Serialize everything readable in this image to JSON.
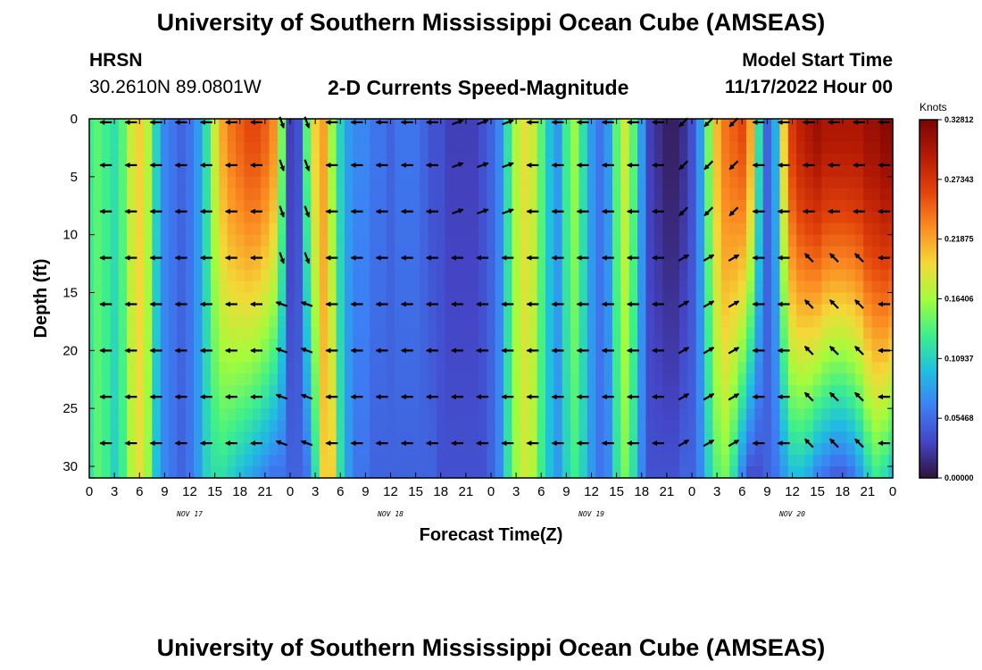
{
  "header": {
    "title": "University of Southern Mississippi Ocean Cube (AMSEAS)",
    "station": "HRSN",
    "coords": "30.2610N  89.0801W",
    "subtitle": "2-D Currents Speed-Magnitude",
    "model_label": "Model Start Time",
    "model_time": "11/17/2022 Hour 00",
    "footer_title": "University of Southern Mississippi Ocean Cube (AMSEAS)"
  },
  "chart_data": {
    "type": "heatmap",
    "title": "2-D Currents Speed-Magnitude",
    "xlabel": "Forecast Time(Z)",
    "ylabel": "Depth (ft)",
    "xlim": [
      0,
      96
    ],
    "ylim": [
      31,
      0
    ],
    "x_ticks": [
      0,
      3,
      6,
      9,
      12,
      15,
      18,
      21,
      24,
      27,
      30,
      33,
      36,
      39,
      42,
      45,
      48,
      51,
      54,
      57,
      60,
      63,
      66,
      69,
      72,
      75,
      78,
      81,
      84,
      87,
      90,
      93,
      96
    ],
    "x_tick_labels": [
      "0",
      "3",
      "6",
      "9",
      "12",
      "15",
      "18",
      "21",
      "0",
      "3",
      "6",
      "9",
      "12",
      "15",
      "18",
      "21",
      "0",
      "3",
      "6",
      "9",
      "12",
      "15",
      "18",
      "21",
      "0",
      "3",
      "6",
      "9",
      "12",
      "15",
      "18",
      "21",
      "0"
    ],
    "day_labels": [
      {
        "hour": 12,
        "label": "NOV 17"
      },
      {
        "hour": 36,
        "label": "NOV 18"
      },
      {
        "hour": 60,
        "label": "NOV 19"
      },
      {
        "hour": 84,
        "label": "NOV 20"
      }
    ],
    "y_ticks": [
      0,
      5,
      10,
      15,
      20,
      25,
      30
    ],
    "colorbar": {
      "units": "Knots",
      "ticks": [
        "0.32812",
        "0.27343",
        "0.21875",
        "0.16406",
        "0.10937",
        "0.05468",
        "0.00000"
      ],
      "min": 0.0,
      "max": 0.32812
    },
    "speed_columns": {
      "hours": [
        0,
        1,
        2,
        3,
        4,
        5,
        6,
        7,
        8,
        9,
        10,
        11,
        12,
        13,
        14,
        15,
        16,
        17,
        18,
        19,
        20,
        21,
        22,
        23,
        24,
        25,
        26,
        27,
        28,
        29,
        30,
        31,
        32,
        33,
        34,
        35,
        36,
        37,
        38,
        39,
        40,
        41,
        42,
        43,
        44,
        45,
        46,
        47,
        48,
        49,
        50,
        51,
        52,
        53,
        54,
        55,
        56,
        57,
        58,
        59,
        60,
        61,
        62,
        63,
        64,
        65,
        66,
        67,
        68,
        69,
        70,
        71,
        72,
        73,
        74,
        75,
        76,
        77,
        78,
        79,
        80,
        81,
        82,
        83,
        84,
        85,
        86,
        87,
        88,
        89,
        90,
        91,
        92,
        93,
        94,
        95,
        96
      ],
      "depths_ft": [
        0,
        5,
        10,
        15,
        20,
        25,
        30
      ],
      "knots_surface": [
        0.13,
        0.14,
        0.13,
        0.12,
        0.14,
        0.18,
        0.2,
        0.17,
        0.11,
        0.07,
        0.06,
        0.05,
        0.06,
        0.08,
        0.12,
        0.18,
        0.22,
        0.24,
        0.25,
        0.26,
        0.26,
        0.25,
        0.23,
        0.15,
        0.03,
        0.04,
        0.14,
        0.2,
        0.22,
        0.16,
        0.11,
        0.08,
        0.07,
        0.07,
        0.06,
        0.06,
        0.05,
        0.06,
        0.06,
        0.06,
        0.05,
        0.04,
        0.04,
        0.03,
        0.03,
        0.03,
        0.03,
        0.04,
        0.05,
        0.07,
        0.12,
        0.17,
        0.19,
        0.18,
        0.14,
        0.1,
        0.08,
        0.13,
        0.16,
        0.12,
        0.08,
        0.06,
        0.08,
        0.14,
        0.18,
        0.14,
        0.08,
        0.03,
        0.02,
        0.01,
        0.01,
        0.02,
        0.04,
        0.08,
        0.15,
        0.21,
        0.24,
        0.25,
        0.26,
        0.22,
        0.12,
        0.05,
        0.09,
        0.2,
        0.27,
        0.29,
        0.3,
        0.31,
        0.3,
        0.3,
        0.3,
        0.3,
        0.3,
        0.31,
        0.31,
        0.32,
        0.32
      ],
      "knots_30ft": [
        0.12,
        0.14,
        0.13,
        0.11,
        0.13,
        0.17,
        0.19,
        0.16,
        0.1,
        0.07,
        0.06,
        0.05,
        0.06,
        0.08,
        0.11,
        0.12,
        0.12,
        0.11,
        0.1,
        0.09,
        0.08,
        0.07,
        0.06,
        0.06,
        0.05,
        0.05,
        0.06,
        0.12,
        0.2,
        0.2,
        0.12,
        0.08,
        0.06,
        0.06,
        0.05,
        0.05,
        0.05,
        0.05,
        0.05,
        0.05,
        0.05,
        0.05,
        0.04,
        0.04,
        0.04,
        0.04,
        0.04,
        0.04,
        0.05,
        0.07,
        0.12,
        0.16,
        0.18,
        0.17,
        0.13,
        0.1,
        0.08,
        0.11,
        0.13,
        0.11,
        0.08,
        0.06,
        0.07,
        0.12,
        0.15,
        0.12,
        0.07,
        0.04,
        0.04,
        0.04,
        0.04,
        0.05,
        0.05,
        0.07,
        0.11,
        0.14,
        0.15,
        0.12,
        0.07,
        0.04,
        0.04,
        0.05,
        0.06,
        0.08,
        0.1,
        0.1,
        0.09,
        0.07,
        0.06,
        0.05,
        0.05,
        0.06,
        0.08,
        0.11,
        0.13,
        0.12,
        0.1
      ]
    },
    "vectors": {
      "note": "arrow direction in degrees, 0=east, 90=north (screen up)",
      "default_direction_deg": 180,
      "columns_hours": [
        2,
        5,
        8,
        11,
        14,
        17,
        20,
        23,
        26,
        29,
        32,
        35,
        38,
        41,
        44,
        47,
        50,
        53,
        56,
        59,
        62,
        65,
        68,
        71,
        74,
        77,
        80,
        83,
        86,
        89,
        92,
        95
      ],
      "row_depths_ft": [
        0,
        4,
        8,
        12,
        16,
        20,
        24,
        28
      ]
    }
  }
}
